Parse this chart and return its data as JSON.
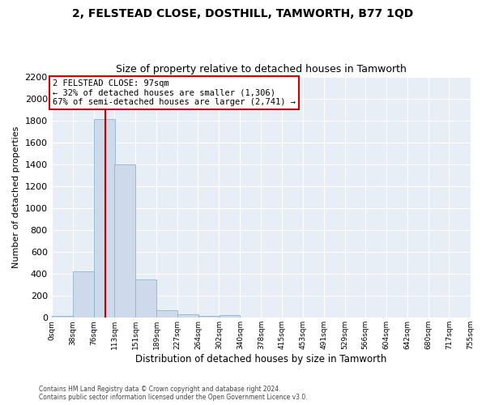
{
  "title": "2, FELSTEAD CLOSE, DOSTHILL, TAMWORTH, B77 1QD",
  "subtitle": "Size of property relative to detached houses in Tamworth",
  "xlabel": "Distribution of detached houses by size in Tamworth",
  "ylabel": "Number of detached properties",
  "bar_color": "#ccdaeb",
  "bar_edge_color": "#90b4d0",
  "background_color": "#e8eef6",
  "grid_color": "#ffffff",
  "property_line_color": "#cc0000",
  "property_label": "2 FELSTEAD CLOSE: 97sqm",
  "annotation_line1": "← 32% of detached houses are smaller (1,306)",
  "annotation_line2": "67% of semi-detached houses are larger (2,741) →",
  "bin_edges": [
    0,
    38,
    76,
    113,
    151,
    189,
    227,
    264,
    302,
    340,
    378,
    415,
    453,
    491,
    529,
    566,
    604,
    642,
    680,
    717,
    755
  ],
  "bin_labels": [
    "0sqm",
    "38sqm",
    "76sqm",
    "113sqm",
    "151sqm",
    "189sqm",
    "227sqm",
    "264sqm",
    "302sqm",
    "340sqm",
    "378sqm",
    "415sqm",
    "453sqm",
    "491sqm",
    "529sqm",
    "566sqm",
    "604sqm",
    "642sqm",
    "680sqm",
    "717sqm",
    "755sqm"
  ],
  "bar_heights": [
    15,
    420,
    1810,
    1400,
    350,
    70,
    30,
    20,
    25,
    0,
    0,
    0,
    0,
    0,
    0,
    0,
    0,
    0,
    0,
    0
  ],
  "ylim": [
    0,
    2200
  ],
  "yticks": [
    0,
    200,
    400,
    600,
    800,
    1000,
    1200,
    1400,
    1600,
    1800,
    2000,
    2200
  ],
  "footer_line1": "Contains HM Land Registry data © Crown copyright and database right 2024.",
  "footer_line2": "Contains public sector information licensed under the Open Government Licence v3.0.",
  "annotation_box_color": "#cc0000",
  "property_line_x": 97
}
